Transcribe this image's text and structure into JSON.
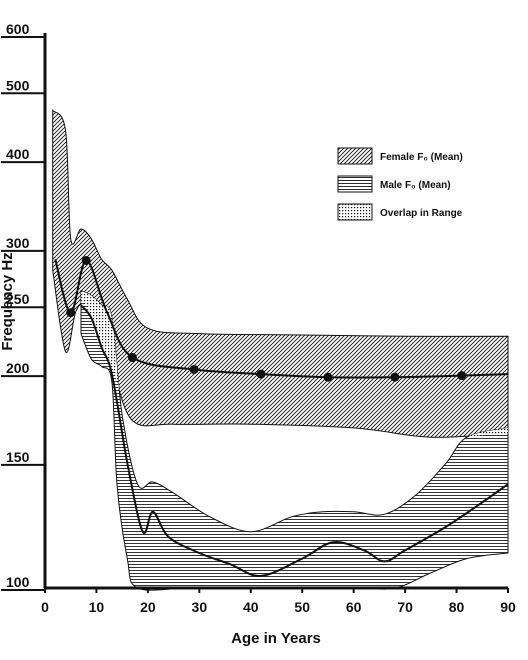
{
  "chart_data": {
    "type": "area",
    "title": "",
    "xlabel": "Age in Years",
    "ylabel": "Frequency Hz",
    "xlim": [
      0,
      90
    ],
    "ylim": [
      100,
      600
    ],
    "yscale": "log",
    "x_ticks": [
      0,
      10,
      20,
      30,
      40,
      50,
      60,
      70,
      80,
      90
    ],
    "y_ticks": [
      100,
      150,
      200,
      250,
      300,
      400,
      500,
      600
    ],
    "grid": false,
    "legend_position": "right",
    "colors": {
      "ink": "#111111",
      "paper": "#ffffff",
      "axis": "#111111"
    },
    "legend": [
      {
        "label": "Female F₀ (Mean)",
        "pattern": "diagonal"
      },
      {
        "label": "Male F₀ (Mean)",
        "pattern": "horizontal"
      },
      {
        "label": "Overlap in Range",
        "pattern": "dots"
      }
    ],
    "series": [
      {
        "name": "Female F₀ (Mean)",
        "mean": [
          {
            "x": 2,
            "y": 290
          },
          {
            "x": 5,
            "y": 244
          },
          {
            "x": 8,
            "y": 289
          },
          {
            "x": 12,
            "y": 245
          },
          {
            "x": 17,
            "y": 211
          },
          {
            "x": 29,
            "y": 203
          },
          {
            "x": 42,
            "y": 200
          },
          {
            "x": 55,
            "y": 198
          },
          {
            "x": 68,
            "y": 198
          },
          {
            "x": 81,
            "y": 199
          },
          {
            "x": 90,
            "y": 200
          }
        ],
        "marked_points_x": [
          5,
          8,
          17,
          29,
          42,
          55,
          68,
          81
        ],
        "upper": [
          {
            "x": 1.5,
            "y": 470
          },
          {
            "x": 4,
            "y": 440
          },
          {
            "x": 5,
            "y": 310
          },
          {
            "x": 7,
            "y": 320
          },
          {
            "x": 9,
            "y": 310
          },
          {
            "x": 11,
            "y": 290
          },
          {
            "x": 13,
            "y": 280
          },
          {
            "x": 16,
            "y": 255
          },
          {
            "x": 20,
            "y": 232
          },
          {
            "x": 30,
            "y": 228
          },
          {
            "x": 50,
            "y": 227
          },
          {
            "x": 70,
            "y": 226
          },
          {
            "x": 90,
            "y": 226
          }
        ],
        "lower": [
          {
            "x": 1.5,
            "y": 280
          },
          {
            "x": 4,
            "y": 215
          },
          {
            "x": 6,
            "y": 245
          },
          {
            "x": 8,
            "y": 250
          },
          {
            "x": 10,
            "y": 225
          },
          {
            "x": 13,
            "y": 205
          },
          {
            "x": 17,
            "y": 172
          },
          {
            "x": 25,
            "y": 170
          },
          {
            "x": 40,
            "y": 170
          },
          {
            "x": 60,
            "y": 168
          },
          {
            "x": 75,
            "y": 163
          },
          {
            "x": 90,
            "y": 165
          }
        ]
      },
      {
        "name": "Male F₀ (Mean)",
        "mean": [
          {
            "x": 7,
            "y": 250
          },
          {
            "x": 9,
            "y": 240
          },
          {
            "x": 11,
            "y": 218
          },
          {
            "x": 13,
            "y": 200
          },
          {
            "x": 16,
            "y": 150
          },
          {
            "x": 19,
            "y": 120
          },
          {
            "x": 21,
            "y": 128
          },
          {
            "x": 24,
            "y": 118
          },
          {
            "x": 30,
            "y": 112
          },
          {
            "x": 36,
            "y": 108
          },
          {
            "x": 42,
            "y": 104
          },
          {
            "x": 50,
            "y": 110
          },
          {
            "x": 56,
            "y": 116
          },
          {
            "x": 62,
            "y": 113
          },
          {
            "x": 66,
            "y": 109
          },
          {
            "x": 70,
            "y": 113
          },
          {
            "x": 78,
            "y": 122
          },
          {
            "x": 85,
            "y": 132
          },
          {
            "x": 90,
            "y": 140
          }
        ],
        "upper": [
          {
            "x": 7,
            "y": 262
          },
          {
            "x": 9,
            "y": 258
          },
          {
            "x": 11,
            "y": 250
          },
          {
            "x": 13,
            "y": 240
          },
          {
            "x": 15,
            "y": 175
          },
          {
            "x": 18,
            "y": 140
          },
          {
            "x": 21,
            "y": 141
          },
          {
            "x": 25,
            "y": 136
          },
          {
            "x": 32,
            "y": 126
          },
          {
            "x": 40,
            "y": 120
          },
          {
            "x": 48,
            "y": 126
          },
          {
            "x": 54,
            "y": 128
          },
          {
            "x": 60,
            "y": 128
          },
          {
            "x": 66,
            "y": 127
          },
          {
            "x": 72,
            "y": 135
          },
          {
            "x": 78,
            "y": 150
          },
          {
            "x": 82,
            "y": 163
          },
          {
            "x": 90,
            "y": 168
          }
        ],
        "lower": [
          {
            "x": 7,
            "y": 228
          },
          {
            "x": 9,
            "y": 210
          },
          {
            "x": 11,
            "y": 205
          },
          {
            "x": 13,
            "y": 195
          },
          {
            "x": 14,
            "y": 140
          },
          {
            "x": 16,
            "y": 110
          },
          {
            "x": 18,
            "y": 100
          },
          {
            "x": 28,
            "y": 100
          },
          {
            "x": 40,
            "y": 100
          },
          {
            "x": 60,
            "y": 100
          },
          {
            "x": 68,
            "y": 100
          },
          {
            "x": 75,
            "y": 105
          },
          {
            "x": 82,
            "y": 110
          },
          {
            "x": 90,
            "y": 112
          }
        ]
      }
    ]
  }
}
